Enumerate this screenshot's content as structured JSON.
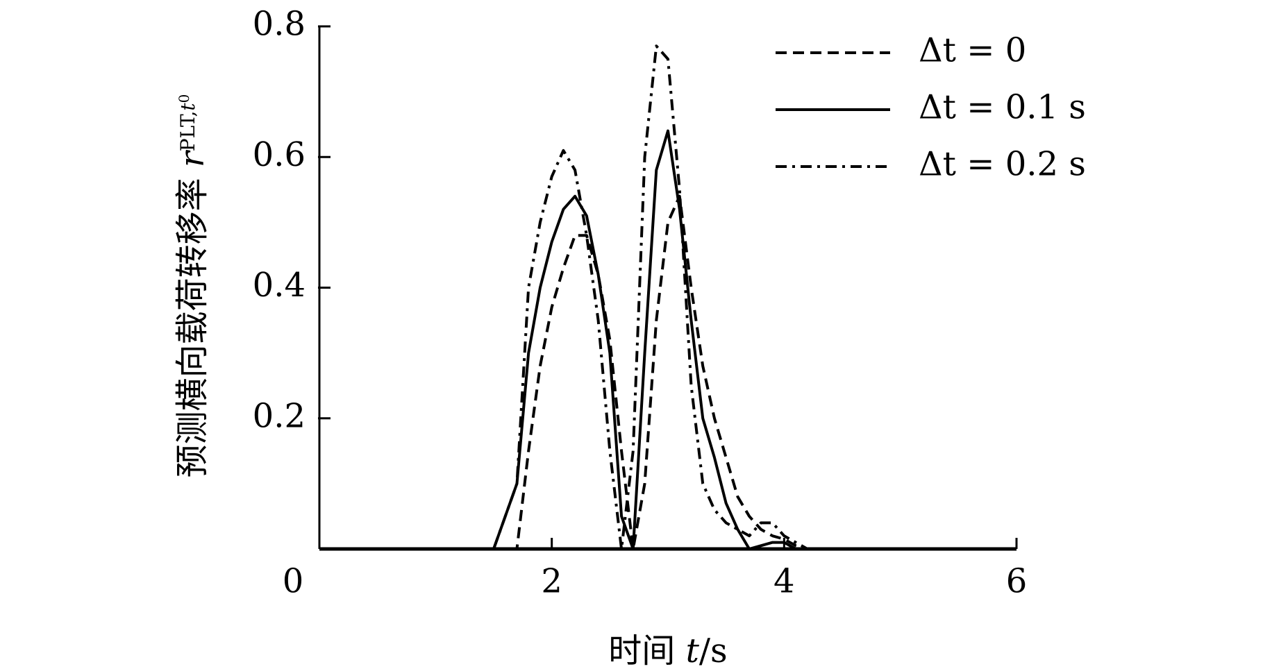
{
  "chart_data": {
    "type": "line",
    "ylabel": "预测横向载荷转移率",
    "ylabel_symbol": "r",
    "ylabel_subscript": "PLT,",
    "ylabel_subscript2": "t",
    "ylabel_subscript3": "0",
    "xlabel": "时间",
    "xlabel_symbol": "t",
    "xlabel_unit": "/s",
    "x": [
      0,
      0.5,
      1.0,
      1.5,
      1.7,
      1.8,
      1.9,
      2.0,
      2.1,
      2.2,
      2.3,
      2.4,
      2.5,
      2.6,
      2.7,
      2.8,
      2.9,
      3.0,
      3.1,
      3.2,
      3.3,
      3.4,
      3.5,
      3.6,
      3.7,
      3.8,
      3.9,
      4.0,
      4.1,
      4.2,
      4.5,
      5.0,
      5.5,
      6.0
    ],
    "series": [
      {
        "name": "Δt = 0",
        "color": "#000000",
        "style": "dashed",
        "values": [
          0,
          0,
          0,
          0,
          0,
          0.15,
          0.28,
          0.37,
          0.43,
          0.48,
          0.48,
          0.42,
          0.32,
          0.15,
          0,
          0.1,
          0.35,
          0.5,
          0.54,
          0.4,
          0.28,
          0.2,
          0.14,
          0.08,
          0.05,
          0.03,
          0.02,
          0.015,
          0.005,
          0,
          0,
          0,
          0,
          0
        ]
      },
      {
        "name": "Δt = 0.1 s",
        "color": "#000000",
        "style": "solid",
        "values": [
          0,
          0,
          0,
          0,
          0.1,
          0.3,
          0.4,
          0.47,
          0.52,
          0.54,
          0.51,
          0.42,
          0.3,
          0.05,
          0,
          0.3,
          0.58,
          0.64,
          0.52,
          0.35,
          0.2,
          0.14,
          0.07,
          0.03,
          0,
          0.005,
          0.01,
          0.01,
          0,
          0,
          0,
          0,
          0,
          0
        ]
      },
      {
        "name": "Δt = 0.2 s",
        "color": "#000000",
        "style": "dashdot",
        "values": [
          0,
          0,
          0,
          0,
          0.1,
          0.4,
          0.5,
          0.57,
          0.61,
          0.58,
          0.48,
          0.35,
          0.15,
          0,
          0.15,
          0.6,
          0.77,
          0.75,
          0.55,
          0.25,
          0.1,
          0.06,
          0.04,
          0.03,
          0.02,
          0.04,
          0.04,
          0.02,
          0.01,
          0,
          0,
          0,
          0,
          0
        ]
      }
    ],
    "xlim": [
      0,
      6
    ],
    "xticks": [
      0,
      2,
      4,
      6
    ],
    "ylim": [
      0,
      0.8
    ],
    "yticks": [
      0.2,
      0.4,
      0.6,
      0.8
    ],
    "legend": "upper right"
  }
}
